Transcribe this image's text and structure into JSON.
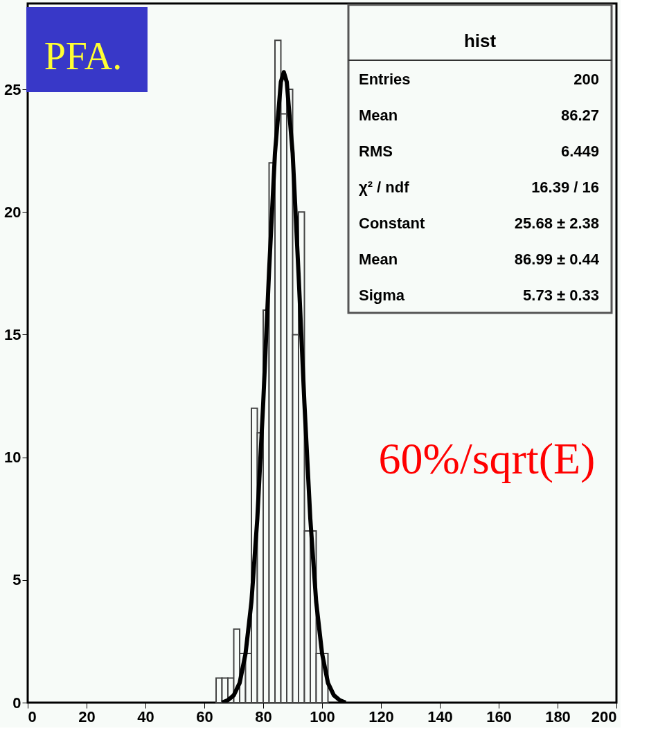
{
  "chart_data": {
    "type": "histogram",
    "bins": [
      64,
      66,
      68,
      70,
      72,
      74,
      76,
      78,
      80,
      82,
      84,
      86,
      88,
      90,
      92,
      94,
      96,
      98,
      100,
      102
    ],
    "series": [
      {
        "color": "#444444",
        "values": [
          1,
          1,
          1,
          3,
          2,
          2,
          12,
          11,
          16,
          22,
          27,
          24,
          25,
          15,
          20,
          7,
          7,
          2,
          2
        ]
      },
      {
        "type": "line",
        "color": "#000000",
        "x": [
          66,
          68,
          70,
          72,
          74,
          76,
          78,
          80,
          82,
          84,
          86,
          87,
          88,
          90,
          92,
          94,
          96,
          98,
          100,
          102,
          104,
          106,
          108
        ],
        "values": [
          0.0,
          0.1,
          0.3,
          0.8,
          2.0,
          4.1,
          7.5,
          12.2,
          17.6,
          22.4,
          25.3,
          25.7,
          25.3,
          22.4,
          17.5,
          12.2,
          7.5,
          4.1,
          2.0,
          0.8,
          0.3,
          0.1,
          0.0
        ]
      }
    ],
    "xlim": [
      0,
      200
    ],
    "ylim": [
      0,
      28.5
    ],
    "xticks": [
      0,
      20,
      40,
      60,
      80,
      100,
      120,
      140,
      160,
      180,
      200
    ],
    "yticks": [
      0,
      5,
      10,
      15,
      20,
      25
    ],
    "grid": false,
    "annotations": [
      "PFA.",
      "60%/sqrt(E)",
      "hist",
      "Entries",
      "200",
      "Mean",
      "86.27",
      "RMS",
      "6.449",
      "χ² / ndf",
      "16.39 / 16",
      "Constant",
      "25.68 ± 2.38",
      "Mean",
      "86.99 ± 0.44",
      "Sigma",
      "5.73 ± 0.33"
    ]
  }
}
